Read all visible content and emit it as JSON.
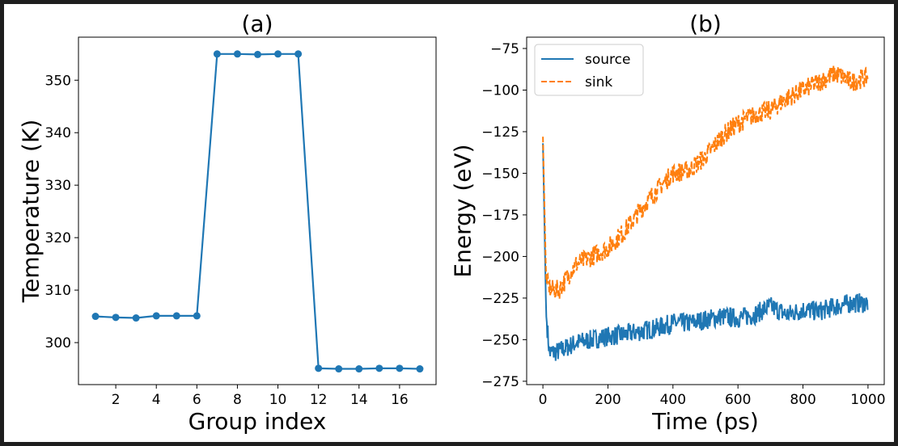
{
  "chart_data": [
    {
      "type": "line",
      "title": "(a)",
      "xlabel": "Group index",
      "ylabel": "Temperature (K)",
      "xlim": [
        0.16,
        17.8
      ],
      "ylim": [
        292,
        358.2
      ],
      "xticks": [
        2,
        4,
        6,
        8,
        10,
        12,
        14,
        16
      ],
      "yticks": [
        300,
        310,
        320,
        330,
        340,
        350
      ],
      "grid": false,
      "marker": "circle",
      "color": "#1f77b4",
      "x": [
        1,
        2,
        3,
        4,
        5,
        6,
        7,
        8,
        9,
        10,
        11,
        12,
        13,
        14,
        15,
        16,
        17
      ],
      "y": [
        305.0,
        304.8,
        304.7,
        305.1,
        305.1,
        305.1,
        355.0,
        355.0,
        354.9,
        355.0,
        355.0,
        295.1,
        295.0,
        295.0,
        295.1,
        295.1,
        295.0
      ]
    },
    {
      "type": "line",
      "title": "(b)",
      "xlabel": "Time (ps)",
      "ylabel": "Energy (eV)",
      "xlim": [
        -50,
        1050
      ],
      "ylim": [
        -277,
        -68.2
      ],
      "xticks": [
        0,
        200,
        400,
        600,
        800,
        1000
      ],
      "yticks": [
        -275,
        -250,
        -225,
        -200,
        -175,
        -150,
        -125,
        -100,
        -75
      ],
      "grid": false,
      "legend": {
        "placement": "upper-left"
      },
      "noise_amplitude": 6,
      "series": [
        {
          "name": "source",
          "style": "solid",
          "color": "#1f77b4",
          "x": [
            0,
            10,
            20,
            50,
            100,
            150,
            200,
            250,
            300,
            350,
            400,
            450,
            500,
            550,
            600,
            650,
            700,
            750,
            800,
            850,
            900,
            950,
            1000
          ],
          "y": [
            -132,
            -235,
            -258,
            -257,
            -252,
            -250,
            -248,
            -247,
            -245,
            -243,
            -240,
            -240,
            -238,
            -236,
            -237,
            -235,
            -230,
            -235,
            -232,
            -233,
            -230,
            -228,
            -228
          ]
        },
        {
          "name": "sink",
          "style": "dashed",
          "color": "#ff7f0e",
          "x": [
            0,
            10,
            25,
            50,
            100,
            150,
            200,
            250,
            300,
            350,
            400,
            450,
            500,
            550,
            600,
            650,
            700,
            750,
            800,
            850,
            900,
            950,
            1000
          ],
          "y": [
            -128,
            -215,
            -220,
            -220,
            -205,
            -200,
            -195,
            -185,
            -172,
            -160,
            -150,
            -148,
            -140,
            -128,
            -120,
            -115,
            -112,
            -105,
            -100,
            -95,
            -90,
            -95,
            -92
          ]
        }
      ]
    }
  ]
}
